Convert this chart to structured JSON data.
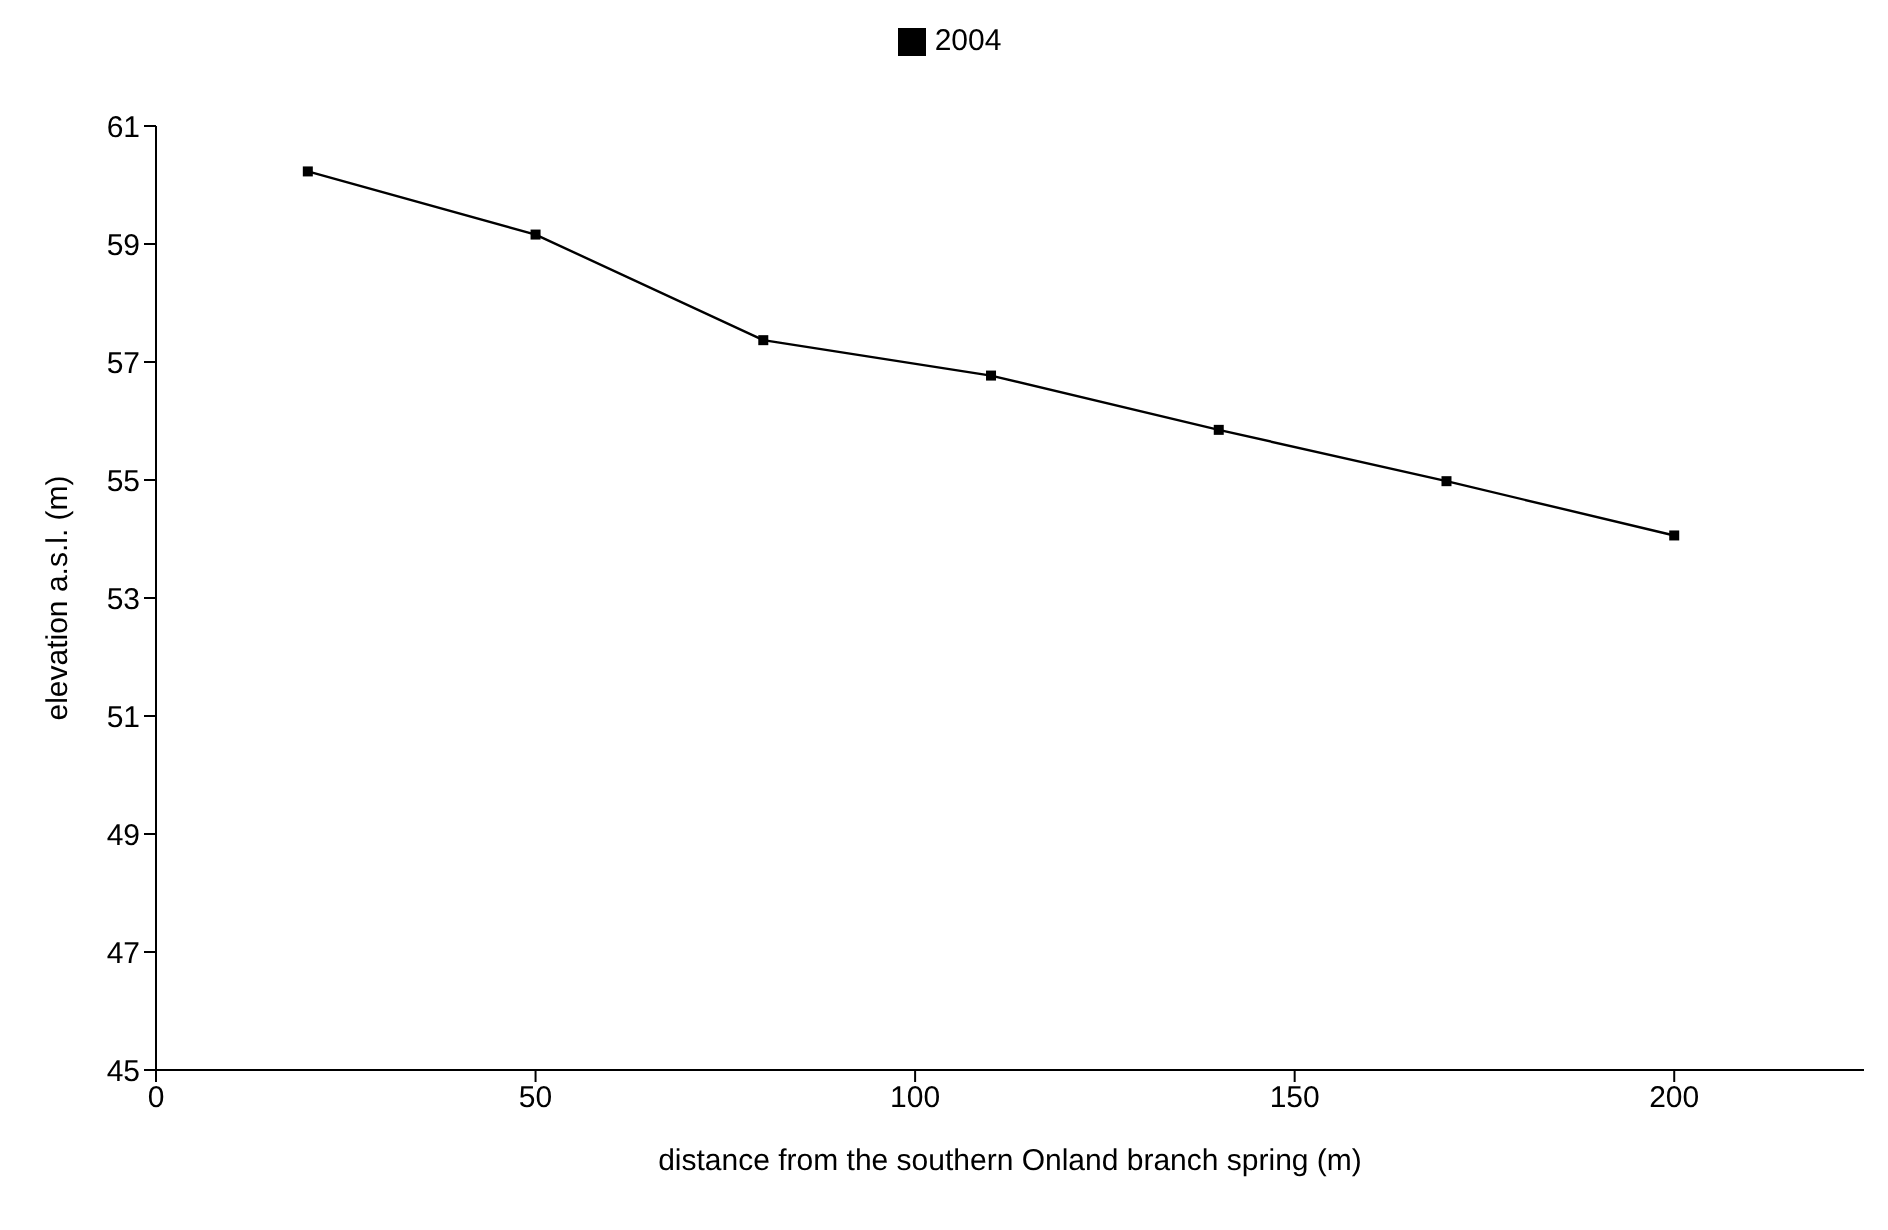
{
  "chart_data": {
    "type": "line",
    "xlabel": "distance from the southern Onland branch spring (m)",
    "ylabel": "elevation a.s.l. (m)",
    "x": [
      20,
      50,
      80,
      110,
      140,
      170,
      200
    ],
    "series": [
      {
        "name": "2004",
        "color": "#000000",
        "values": [
          60.23,
          59.16,
          57.37,
          56.77,
          55.85,
          54.98,
          54.06
        ]
      }
    ],
    "xlim": [
      0,
      225
    ],
    "xticks": [
      0,
      50,
      100,
      150,
      200
    ],
    "ylim": [
      45,
      61
    ],
    "yticks": [
      45,
      47,
      49,
      51,
      53,
      55,
      57,
      59,
      61
    ],
    "grid": false,
    "legend": "top",
    "marker": "square",
    "line_style": "solid"
  }
}
